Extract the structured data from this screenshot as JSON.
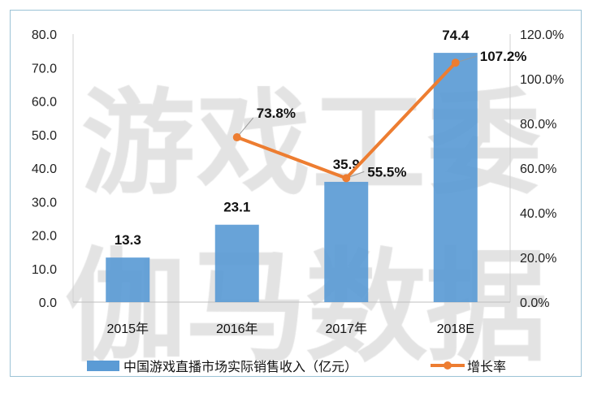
{
  "watermark": {
    "line1": "游戏工委",
    "line2": "伽马数据"
  },
  "chart_data": {
    "type": "bar+line",
    "categories": [
      "2015年",
      "2016年",
      "2017年",
      "2018E"
    ],
    "series": [
      {
        "name": "中国游戏直播市场实际销售收入（亿元）",
        "type": "bar",
        "axis": "left",
        "values": [
          13.3,
          23.1,
          35.9,
          74.4
        ],
        "labels": [
          "13.3",
          "23.1",
          "35.9",
          "74.4"
        ],
        "color": "#5b9bd5"
      },
      {
        "name": "增长率",
        "type": "line",
        "axis": "right",
        "values": [
          null,
          73.8,
          55.5,
          107.2
        ],
        "labels": [
          null,
          "73.8%",
          "55.5%",
          "107.2%"
        ],
        "color": "#ed7d31"
      }
    ],
    "left_axis": {
      "ylim": [
        0,
        80
      ],
      "ticks": [
        "0.0",
        "10.0",
        "20.0",
        "30.0",
        "40.0",
        "50.0",
        "60.0",
        "70.0",
        "80.0"
      ]
    },
    "right_axis": {
      "ylim": [
        0,
        120
      ],
      "ticks": [
        "0.0%",
        "20.0%",
        "40.0%",
        "60.0%",
        "80.0%",
        "100.0%",
        "120.0%"
      ]
    },
    "grid": false,
    "legend_position": "bottom"
  }
}
